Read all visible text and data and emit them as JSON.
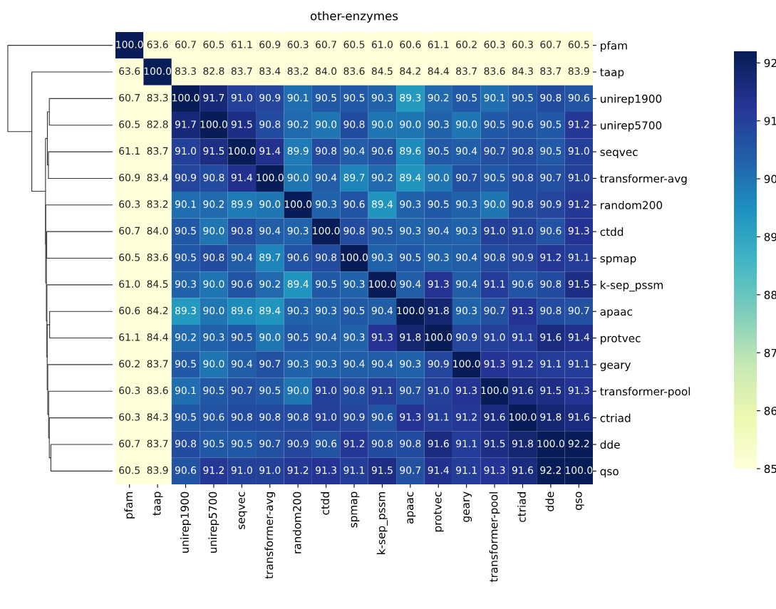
{
  "chart_data": {
    "type": "heatmap",
    "title": "other-enzymes",
    "categories": [
      "pfam",
      "taap",
      "unirep1900",
      "unirep5700",
      "seqvec",
      "transformer-avg",
      "random200",
      "ctdd",
      "spmap",
      "k-sep_pssm",
      "apaac",
      "protvec",
      "geary",
      "transformer-pool",
      "ctriad",
      "dde",
      "qso"
    ],
    "y_categories": [
      "pfam",
      "taap",
      "unirep1900",
      "unirep5700",
      "seqvec",
      "transformer-avg",
      "random200",
      "ctdd",
      "spmap",
      "k-sep_pssm",
      "apaac",
      "protvec",
      "geary",
      "transformer-pool",
      "ctriad",
      "dde",
      "qso"
    ],
    "cells": [
      [
        100.0,
        63.6,
        60.7,
        60.5,
        61.1,
        60.9,
        60.3,
        60.7,
        60.5,
        61.0,
        60.6,
        61.1,
        60.2,
        60.3,
        60.3,
        60.7,
        60.5
      ],
      [
        63.6,
        100.0,
        83.3,
        82.8,
        83.7,
        83.4,
        83.2,
        84.0,
        83.6,
        84.5,
        84.2,
        84.4,
        83.7,
        83.6,
        84.3,
        83.7,
        83.9
      ],
      [
        60.7,
        83.3,
        100.0,
        91.7,
        91.0,
        90.9,
        90.1,
        90.5,
        90.5,
        90.3,
        89.3,
        90.2,
        90.5,
        90.1,
        90.5,
        90.8,
        90.6
      ],
      [
        60.5,
        82.8,
        91.7,
        100.0,
        91.5,
        90.8,
        90.2,
        90.0,
        90.8,
        90.0,
        90.0,
        90.3,
        90.0,
        90.5,
        90.6,
        90.5,
        91.2
      ],
      [
        61.1,
        83.7,
        91.0,
        91.5,
        100.0,
        91.4,
        89.9,
        90.8,
        90.4,
        90.6,
        89.6,
        90.5,
        90.4,
        90.7,
        90.8,
        90.5,
        91.0
      ],
      [
        60.9,
        83.4,
        90.9,
        90.8,
        91.4,
        100.0,
        90.0,
        90.4,
        89.7,
        90.2,
        89.4,
        90.0,
        90.7,
        90.5,
        90.8,
        90.7,
        91.0
      ],
      [
        60.3,
        83.2,
        90.1,
        90.2,
        89.9,
        90.0,
        100.0,
        90.3,
        90.6,
        89.4,
        90.3,
        90.5,
        90.3,
        90.0,
        90.8,
        90.9,
        91.2
      ],
      [
        60.7,
        84.0,
        90.5,
        90.0,
        90.8,
        90.4,
        90.3,
        100.0,
        90.8,
        90.5,
        90.3,
        90.4,
        90.3,
        91.0,
        91.0,
        90.6,
        91.3
      ],
      [
        60.5,
        83.6,
        90.5,
        90.8,
        90.4,
        89.7,
        90.6,
        90.8,
        100.0,
        90.3,
        90.5,
        90.3,
        90.4,
        90.8,
        90.9,
        91.2,
        91.1
      ],
      [
        61.0,
        84.5,
        90.3,
        90.0,
        90.6,
        90.2,
        89.4,
        90.5,
        90.3,
        100.0,
        90.4,
        91.3,
        90.4,
        91.1,
        90.6,
        90.8,
        91.5
      ],
      [
        60.6,
        84.2,
        89.3,
        90.0,
        89.6,
        89.4,
        90.3,
        90.3,
        90.5,
        90.4,
        100.0,
        91.8,
        90.3,
        90.7,
        91.3,
        90.8,
        90.7
      ],
      [
        61.1,
        84.4,
        90.2,
        90.3,
        90.5,
        90.0,
        90.5,
        90.4,
        90.3,
        91.3,
        91.8,
        100.0,
        90.9,
        91.0,
        91.1,
        91.6,
        91.4
      ],
      [
        60.2,
        83.7,
        90.5,
        90.0,
        90.4,
        90.7,
        90.3,
        90.3,
        90.4,
        90.4,
        90.3,
        90.9,
        100.0,
        91.3,
        91.2,
        91.1,
        91.1
      ],
      [
        60.3,
        83.6,
        90.1,
        90.5,
        90.7,
        90.5,
        90.0,
        91.0,
        90.8,
        91.1,
        90.7,
        91.0,
        91.3,
        100.0,
        91.6,
        91.5,
        91.3
      ],
      [
        60.3,
        84.3,
        90.5,
        90.6,
        90.8,
        90.8,
        90.8,
        91.0,
        90.9,
        90.6,
        91.3,
        91.1,
        91.2,
        91.6,
        100.0,
        91.8,
        91.6
      ],
      [
        60.7,
        83.7,
        90.8,
        90.5,
        90.5,
        90.7,
        90.9,
        90.6,
        91.2,
        90.8,
        90.8,
        91.6,
        91.1,
        91.5,
        91.8,
        100.0,
        92.2
      ],
      [
        60.5,
        83.9,
        90.6,
        91.2,
        91.0,
        91.0,
        91.2,
        91.3,
        91.1,
        91.5,
        90.7,
        91.4,
        91.1,
        91.3,
        91.6,
        92.2,
        100.0
      ]
    ],
    "cell_labels": [
      [
        "100.0",
        "63.6",
        "60.7",
        "60.5",
        "61.1",
        "60.9",
        "60.3",
        "60.7",
        "60.5",
        "61.0",
        "60.6",
        "61.1",
        "60.2",
        "60.3",
        "60.3",
        "60.7",
        "60.5"
      ],
      [
        "63.6",
        "100.0",
        "83.3",
        "82.8",
        "83.7",
        "83.4",
        "83.2",
        "84.0",
        "83.6",
        "84.5",
        "84.2",
        "84.4",
        "83.7",
        "83.6",
        "84.3",
        "83.7",
        "83.9"
      ],
      [
        "60.7",
        "83.3",
        "100.0",
        "91.7",
        "91.0",
        "90.9",
        "90.1",
        "90.5",
        "90.5",
        "90.3",
        "89.3",
        "90.2",
        "90.5",
        "90.1",
        "90.5",
        "90.8",
        "90.6"
      ],
      [
        "60.5",
        "82.8",
        "91.7",
        "100.0",
        "91.5",
        "90.8",
        "90.2",
        "90.0",
        "90.8",
        "90.0",
        "90.0",
        "90.3",
        "90.0",
        "90.5",
        "90.6",
        "90.5",
        "91.2"
      ],
      [
        "61.1",
        "83.7",
        "91.0",
        "91.5",
        "100.0",
        "91.4",
        "89.9",
        "90.8",
        "90.4",
        "90.6",
        "89.6",
        "90.5",
        "90.4",
        "90.7",
        "90.8",
        "90.5",
        "91.0"
      ],
      [
        "60.9",
        "83.4",
        "90.9",
        "90.8",
        "91.4",
        "100.0",
        "90.0",
        "90.4",
        "89.7",
        "90.2",
        "89.4",
        "90.0",
        "90.7",
        "90.5",
        "90.8",
        "90.7",
        "91.0"
      ],
      [
        "60.3",
        "83.2",
        "90.1",
        "90.2",
        "89.9",
        "90.0",
        "100.0",
        "90.3",
        "90.6",
        "89.4",
        "90.3",
        "90.5",
        "90.3",
        "90.0",
        "90.8",
        "90.9",
        "91.2"
      ],
      [
        "60.7",
        "84.0",
        "90.5",
        "90.0",
        "90.8",
        "90.4",
        "90.3",
        "100.0",
        "90.8",
        "90.5",
        "90.3",
        "90.4",
        "90.3",
        "91.0",
        "91.0",
        "90.6",
        "91.3"
      ],
      [
        "60.5",
        "83.6",
        "90.5",
        "90.8",
        "90.4",
        "89.7",
        "90.6",
        "90.8",
        "100.0",
        "90.3",
        "90.5",
        "90.3",
        "90.4",
        "90.8",
        "90.9",
        "91.2",
        "91.1"
      ],
      [
        "61.0",
        "84.5",
        "90.3",
        "90.0",
        "90.6",
        "90.2",
        "89.4",
        "90.5",
        "90.3",
        "100.0",
        "90.4",
        "91.3",
        "90.4",
        "91.1",
        "90.6",
        "90.8",
        "91.5"
      ],
      [
        "60.6",
        "84.2",
        "89.3",
        "90.0",
        "89.6",
        "89.4",
        "90.3",
        "90.3",
        "90.5",
        "90.4",
        "100.0",
        "91.8",
        "90.3",
        "90.7",
        "91.3",
        "90.8",
        "90.7"
      ],
      [
        "61.1",
        "84.4",
        "90.2",
        "90.3",
        "90.5",
        "90.0",
        "90.5",
        "90.4",
        "90.3",
        "91.3",
        "91.8",
        "100.0",
        "90.9",
        "91.0",
        "91.1",
        "91.6",
        "91.4"
      ],
      [
        "60.2",
        "83.7",
        "90.5",
        "90.0",
        "90.4",
        "90.7",
        "90.3",
        "90.3",
        "90.4",
        "90.4",
        "90.3",
        "90.9",
        "100.0",
        "91.3",
        "91.2",
        "91.1",
        "91.1"
      ],
      [
        "60.3",
        "83.6",
        "90.1",
        "90.5",
        "90.7",
        "90.5",
        "90.0",
        "91.0",
        "90.8",
        "91.1",
        "90.7",
        "91.0",
        "91.3",
        "100.0",
        "91.6",
        "91.5",
        "91.3"
      ],
      [
        "60.3",
        "84.3",
        "90.5",
        "90.6",
        "90.8",
        "90.8",
        "90.8",
        "91.0",
        "90.9",
        "90.6",
        "91.3",
        "91.1",
        "91.2",
        "91.6",
        "100.0",
        "91.8",
        "91.6"
      ],
      [
        "60.7",
        "83.7",
        "90.8",
        "90.5",
        "90.5",
        "90.7",
        "90.9",
        "90.6",
        "91.2",
        "90.8",
        "90.8",
        "91.6",
        "91.1",
        "91.5",
        "91.8",
        "100.0",
        "92.2"
      ],
      [
        "60.5",
        "83.9",
        "90.6",
        "91.2",
        "91.0",
        "91.0",
        "91.2",
        "91.3",
        "91.1",
        "91.5",
        "90.7",
        "91.4",
        "91.1",
        "91.3",
        "91.6",
        "92.2",
        "100.0"
      ]
    ],
    "clim": [
      85,
      92.2
    ],
    "cticks": [
      85,
      86,
      87,
      88,
      89,
      90,
      91,
      92
    ]
  }
}
